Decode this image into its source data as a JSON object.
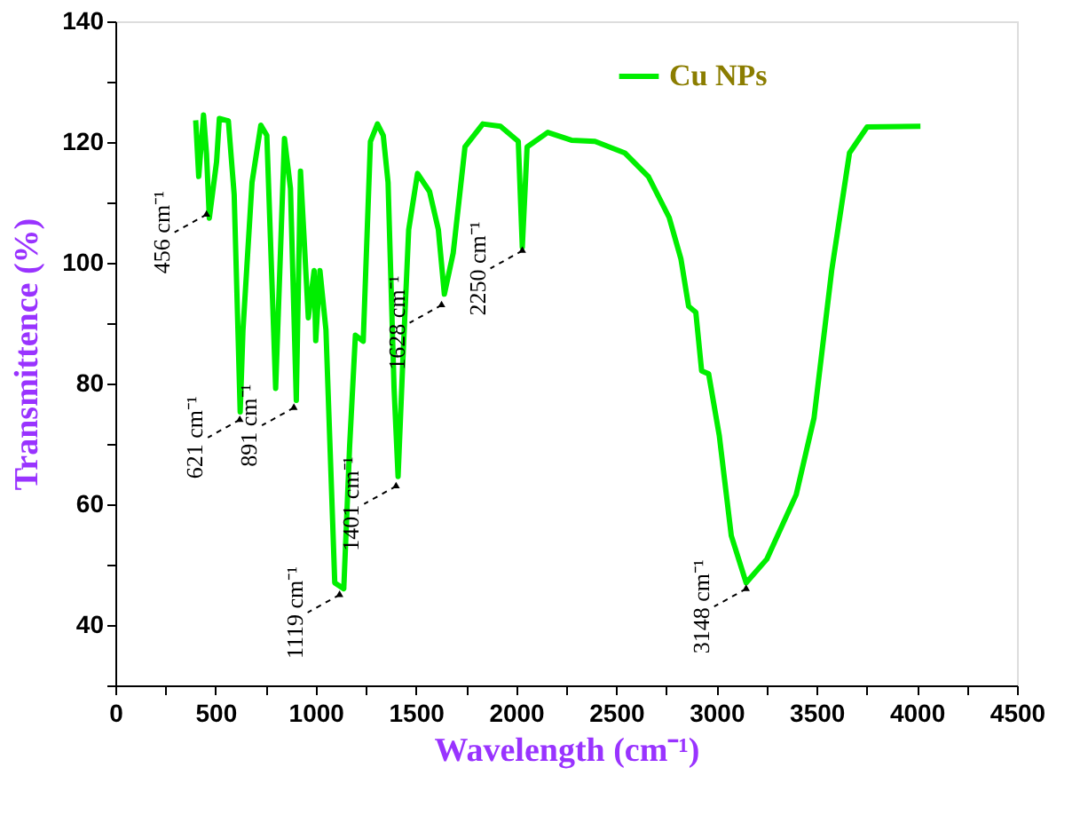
{
  "chart_data": {
    "type": "line",
    "xlabel": "Wavelength (cm⁻¹)",
    "ylabel": "Transmittence (%)",
    "xlim": [
      0,
      4500
    ],
    "ylim": [
      30,
      140
    ],
    "xticks": [
      0,
      {
        "value": 250,
        "label": null
      },
      500,
      {
        "value": 750,
        "label": null
      },
      1000,
      {
        "value": 1250,
        "label": null
      },
      1500,
      {
        "value": 1750,
        "label": null
      },
      2000,
      {
        "value": 2250,
        "label": null
      },
      2500,
      {
        "value": 2750,
        "label": null
      },
      3000,
      {
        "value": 3250,
        "label": null
      },
      3500,
      {
        "value": 3750,
        "label": null
      },
      4000,
      {
        "value": 4250,
        "label": null
      },
      4500
    ],
    "yticks": [
      {
        "value": 30,
        "label": null
      },
      40,
      {
        "value": 50,
        "label": null
      },
      60,
      {
        "value": 70,
        "label": null
      },
      80,
      {
        "value": 90,
        "label": null
      },
      100,
      {
        "value": 110,
        "label": null
      },
      120,
      {
        "value": 130,
        "label": null
      },
      140
    ],
    "grid": false,
    "legend": "top right",
    "marker": "none",
    "line_style": "solid",
    "series": [
      {
        "name": "Cu NPs",
        "color": "#00ee00",
        "x": [
          401,
          416,
          440,
          455,
          469,
          505,
          519,
          564,
          593,
          623,
          637,
          682,
          726,
          756,
          800,
          844,
          874,
          903,
          924,
          963,
          992,
          1000,
          1021,
          1051,
          1095,
          1140,
          1169,
          1198,
          1237,
          1273,
          1308,
          1337,
          1361,
          1391,
          1411,
          1435,
          1464,
          1508,
          1568,
          1612,
          1642,
          1686,
          1745,
          1834,
          1922,
          2011,
          2031,
          2055,
          2158,
          2276,
          2394,
          2542,
          2660,
          2764,
          2823,
          2861,
          2897,
          2926,
          2961,
          3014,
          3074,
          3148,
          3251,
          3398,
          3487,
          3575,
          3664,
          3752,
          4018
        ],
        "values": [
          123.6,
          114.3,
          124.5,
          118,
          107.4,
          116.7,
          123.9,
          123.5,
          111.3,
          75.3,
          88.9,
          113.3,
          122.8,
          121.1,
          79.2,
          120.6,
          112.3,
          77.2,
          115.2,
          90.9,
          98.7,
          87.1,
          98.7,
          88.9,
          47,
          46,
          69.5,
          88,
          87,
          120.1,
          123,
          121.1,
          113.3,
          79.2,
          64.6,
          84,
          105.5,
          114.8,
          111.8,
          105.5,
          94.8,
          101.6,
          119.2,
          123,
          122.6,
          120.1,
          102.6,
          119.2,
          121.6,
          120.3,
          120.1,
          118.2,
          114.3,
          107.5,
          100.6,
          92.8,
          91.8,
          82.1,
          81.6,
          71.4,
          54.8,
          47,
          50.9,
          61.6,
          74.3,
          98.7,
          118.2,
          122.5,
          122.6
        ]
      }
    ],
    "annotations": [
      {
        "text": "456 cm⁻¹",
        "x": 455,
        "y": 108
      },
      {
        "text": "621 cm⁻¹",
        "x": 621,
        "y": 74
      },
      {
        "text": "891 cm⁻¹",
        "x": 891,
        "y": 76
      },
      {
        "text": "1119 cm⁻¹",
        "x": 1119,
        "y": 45
      },
      {
        "text": "1401 cm⁻¹",
        "x": 1401,
        "y": 63
      },
      {
        "text": "1628 cm⁻¹",
        "x": 1628,
        "y": 93
      },
      {
        "text": "2250 cm⁻¹",
        "x": 2031,
        "y": 102
      },
      {
        "text": "3148 cm⁻¹",
        "x": 3148,
        "y": 46
      }
    ]
  }
}
